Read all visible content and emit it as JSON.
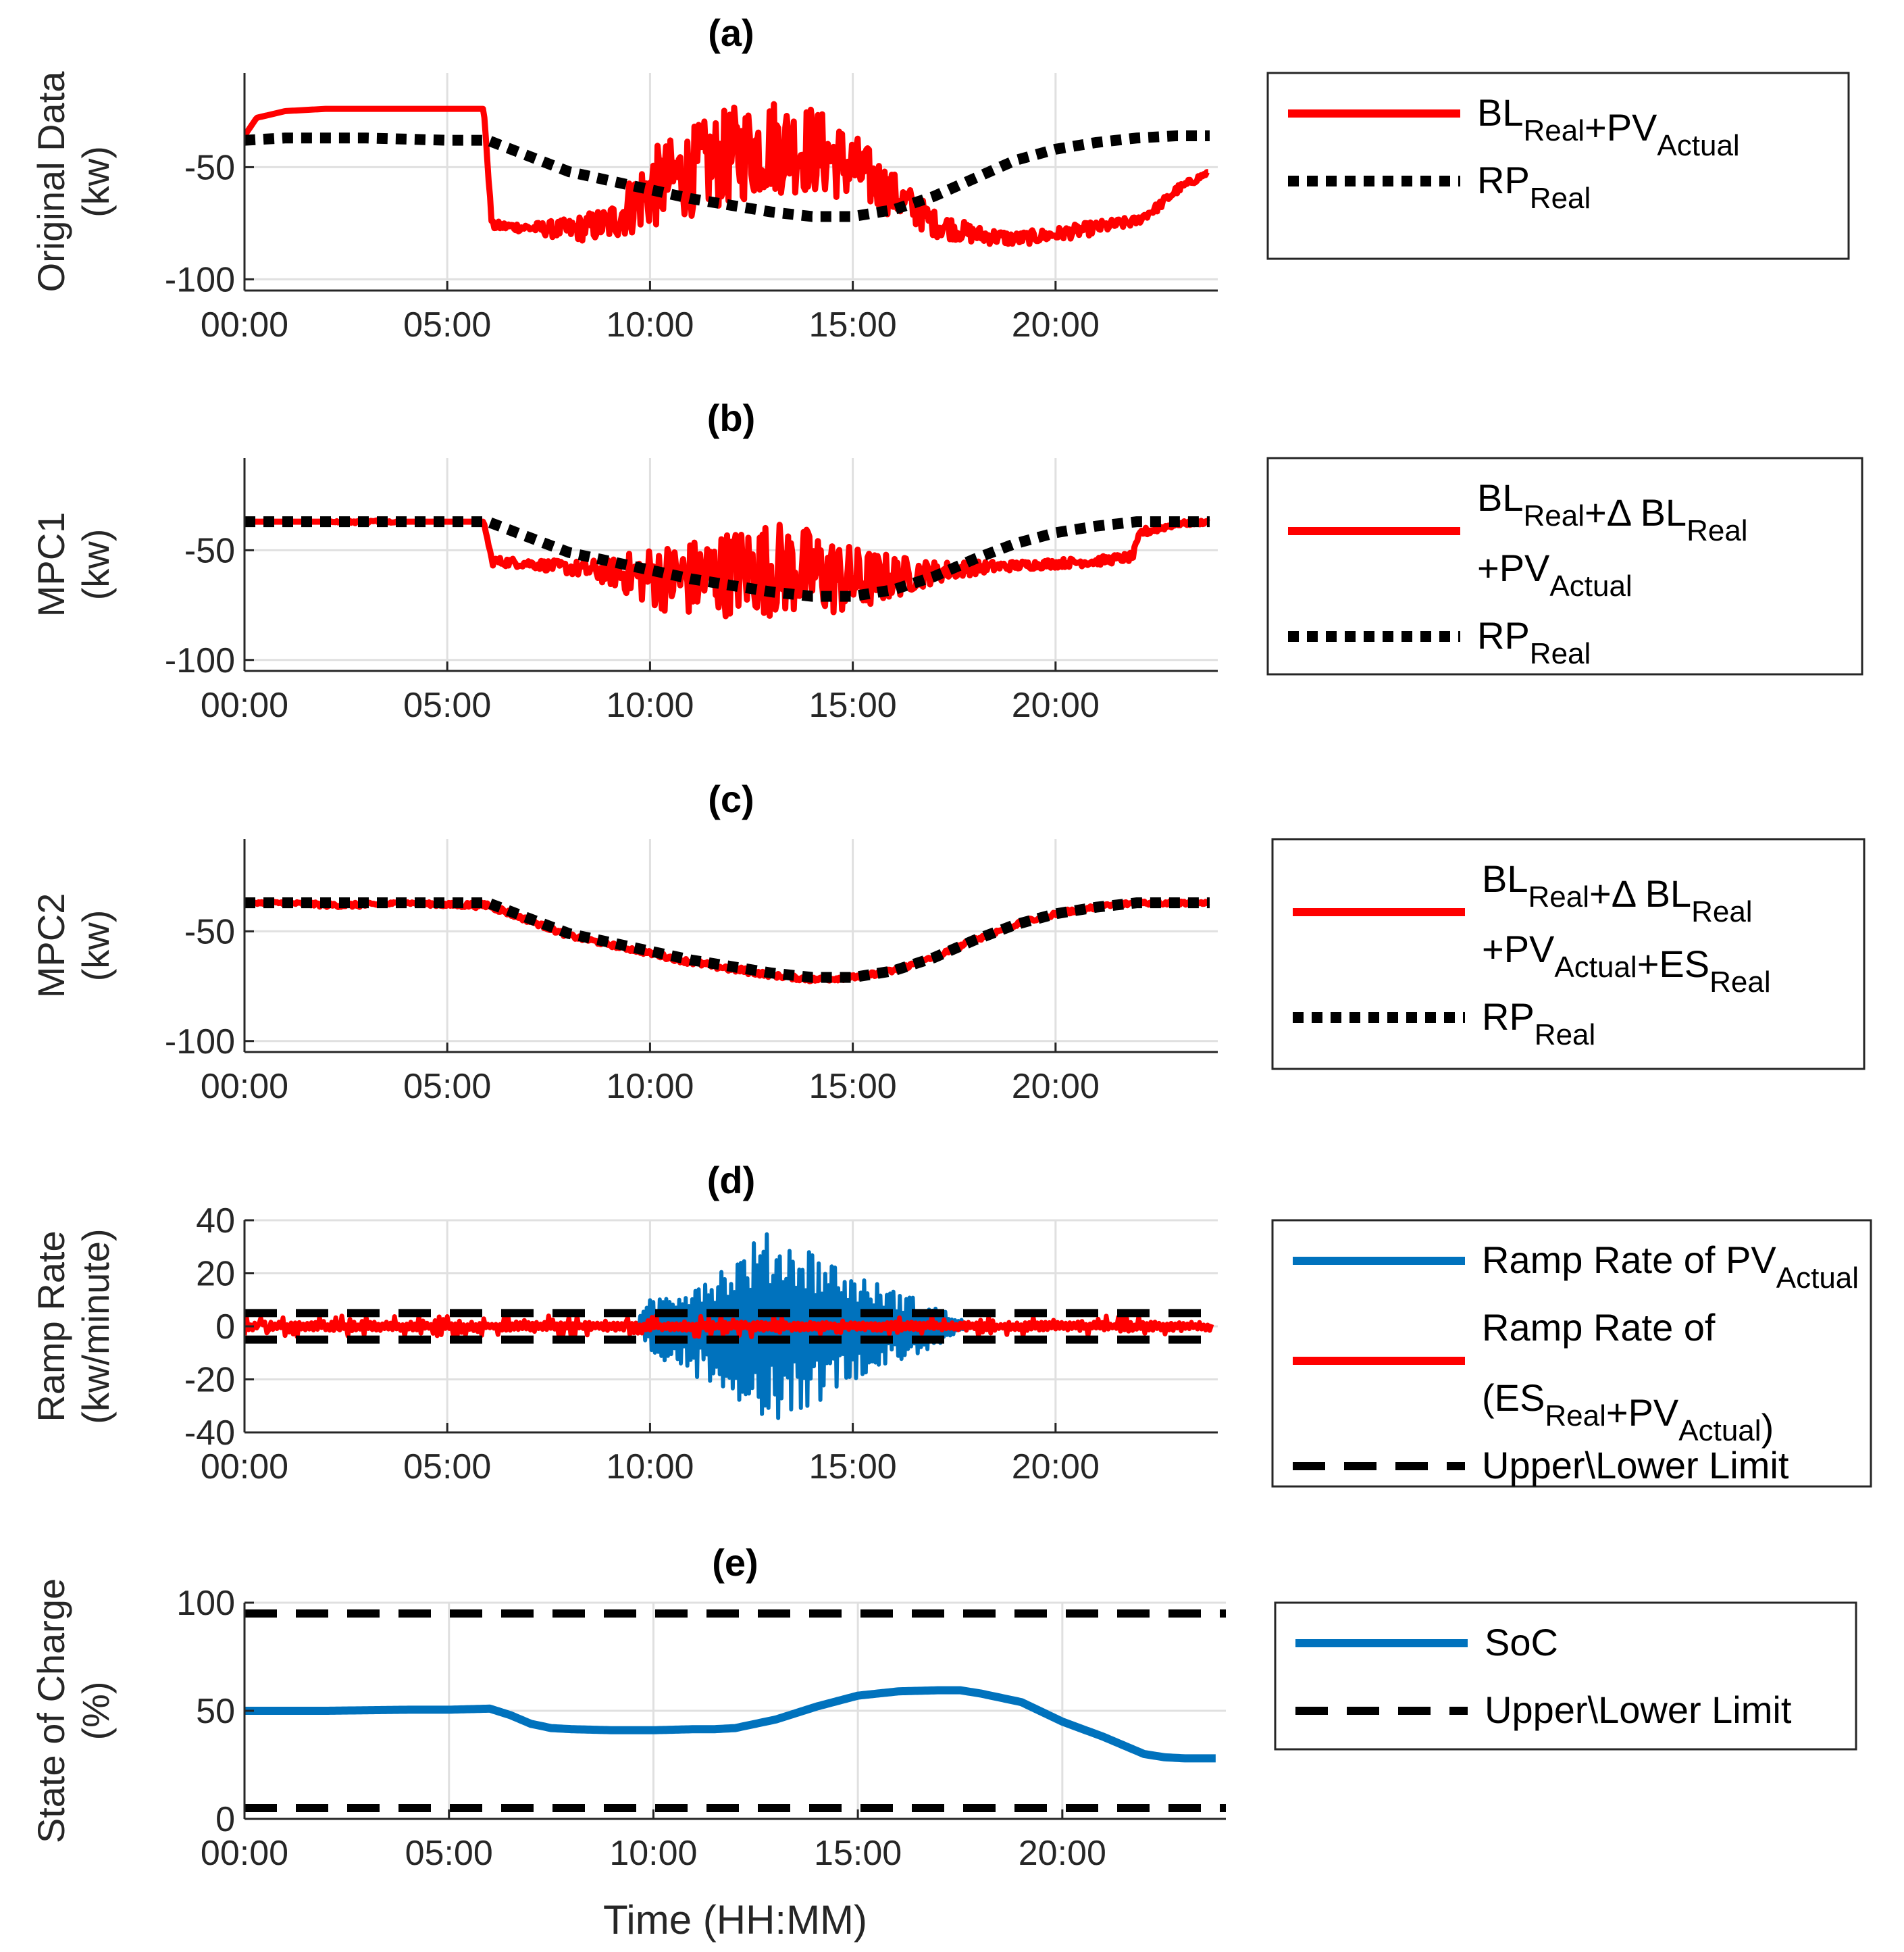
{
  "chart_data": [
    {
      "type": "line",
      "panel_label": "(a)",
      "ylabel_lines": [
        "Original Data",
        "(kw)"
      ],
      "xlabel": "",
      "x_ticks": [
        "00:00",
        "05:00",
        "10:00",
        "15:00",
        "20:00"
      ],
      "y_ticks": [
        "-50",
        "-100"
      ],
      "x_unit": "hours",
      "xlim": [
        0,
        24
      ],
      "ylim": [
        -105,
        -8
      ],
      "grid": true,
      "legend_position": "right",
      "series": [
        {
          "name": "BL_Real+PV_Actual",
          "color": "#ff0000",
          "style": "solid",
          "noisy": true,
          "x": [
            0,
            0.3,
            1,
            2,
            3,
            4,
            5,
            5.9,
            6.1,
            7,
            8,
            9,
            10,
            11,
            12,
            13,
            14,
            15,
            16,
            17,
            18,
            19,
            20,
            21,
            22,
            22.5,
            23,
            23.8
          ],
          "y": [
            -36,
            -28,
            -25,
            -24,
            -24,
            -24,
            -24,
            -24,
            -76,
            -77,
            -78,
            -75,
            -60,
            -52,
            -45,
            -40,
            -42,
            -50,
            -62,
            -75,
            -80,
            -82,
            -80,
            -77,
            -74,
            -68,
            -60,
            -52
          ],
          "noise": [
            0,
            0,
            0,
            0,
            0,
            0,
            0,
            0,
            2,
            2,
            5,
            8,
            18,
            20,
            22,
            22,
            20,
            16,
            10,
            6,
            4,
            3,
            3,
            3,
            2,
            2,
            2,
            1
          ]
        },
        {
          "name": "RP_Real",
          "color": "#000000",
          "style": "dotted",
          "x": [
            0,
            1,
            3,
            5,
            6,
            7,
            8,
            9,
            10,
            11,
            12,
            13,
            14,
            15,
            16,
            17,
            18,
            19,
            20,
            21,
            22,
            23,
            23.8
          ],
          "y": [
            -38,
            -37,
            -37,
            -38,
            -38,
            -45,
            -52,
            -56,
            -60,
            -64,
            -67,
            -70,
            -72,
            -72,
            -69,
            -63,
            -55,
            -47,
            -42,
            -39,
            -37,
            -36,
            -36
          ]
        }
      ]
    },
    {
      "type": "line",
      "panel_label": "(b)",
      "ylabel_lines": [
        "MPC1",
        "(kw)"
      ],
      "xlabel": "",
      "x_ticks": [
        "00:00",
        "05:00",
        "10:00",
        "15:00",
        "20:00"
      ],
      "y_ticks": [
        "-50",
        "-100"
      ],
      "x_unit": "hours",
      "xlim": [
        0,
        24
      ],
      "ylim": [
        -105,
        -8
      ],
      "grid": true,
      "legend_position": "right",
      "series": [
        {
          "name": "BL_Real+Δ BL_Real+PV_Actual",
          "color": "#ff0000",
          "style": "solid",
          "noisy": true,
          "x": [
            0,
            1,
            2,
            3,
            4,
            5,
            5.9,
            6.1,
            7,
            8,
            9,
            10,
            11,
            12,
            13,
            14,
            15,
            16,
            17,
            18,
            19,
            20,
            21,
            21.9,
            22.1,
            23,
            23.8
          ],
          "y": [
            -37,
            -37,
            -37,
            -37,
            -37,
            -37,
            -37,
            -55,
            -56,
            -58,
            -60,
            -62,
            -63,
            -60,
            -58,
            -60,
            -64,
            -62,
            -60,
            -58,
            -57,
            -56,
            -55,
            -53,
            -42,
            -38,
            -37
          ],
          "noise": [
            0,
            0,
            0,
            1,
            0,
            0,
            0,
            2,
            2,
            3,
            6,
            14,
            18,
            20,
            22,
            20,
            16,
            10,
            5,
            3,
            2,
            2,
            2,
            2,
            2,
            1,
            1
          ]
        },
        {
          "name": "RP_Real",
          "color": "#000000",
          "style": "dotted",
          "x": [
            0,
            1,
            3,
            5,
            6,
            7,
            8,
            9,
            10,
            11,
            12,
            13,
            14,
            15,
            16,
            17,
            18,
            19,
            20,
            21,
            22,
            23,
            23.8
          ],
          "y": [
            -37,
            -37,
            -37,
            -37,
            -37,
            -44,
            -51,
            -55,
            -59,
            -63,
            -66,
            -69,
            -71,
            -71,
            -68,
            -62,
            -54,
            -47,
            -42,
            -39,
            -37,
            -37,
            -37
          ]
        }
      ]
    },
    {
      "type": "line",
      "panel_label": "(c)",
      "ylabel_lines": [
        "MPC2",
        "(kw)"
      ],
      "xlabel": "",
      "x_ticks": [
        "00:00",
        "05:00",
        "10:00",
        "15:00",
        "20:00"
      ],
      "y_ticks": [
        "-50",
        "-100"
      ],
      "x_unit": "hours",
      "xlim": [
        0,
        24
      ],
      "ylim": [
        -105,
        -8
      ],
      "grid": true,
      "legend_position": "right",
      "series": [
        {
          "name": "BL_Real+Δ BL_Real+PV_Actual+ES_Real",
          "color": "#ff0000",
          "style": "solid",
          "noisy": true,
          "x": [
            0,
            1,
            2,
            3,
            4,
            5,
            6,
            7,
            8,
            9,
            10,
            11,
            12,
            13,
            14,
            15,
            16,
            17,
            18,
            19,
            20,
            21,
            22,
            23,
            23.8
          ],
          "y": [
            -37,
            -37,
            -38,
            -38,
            -37,
            -38,
            -38,
            -45,
            -52,
            -56,
            -60,
            -64,
            -67,
            -70,
            -72,
            -71,
            -68,
            -62,
            -54,
            -47,
            -42,
            -39,
            -37,
            -37,
            -37
          ],
          "noise": [
            0.5,
            0.5,
            1,
            1,
            0.5,
            1,
            1.5,
            1,
            1,
            1,
            1,
            1.2,
            1.5,
            1,
            1,
            1,
            1,
            1,
            1,
            1,
            1,
            1,
            1,
            1,
            0.5
          ]
        },
        {
          "name": "RP_Real",
          "color": "#000000",
          "style": "dotted",
          "x": [
            0,
            1,
            3,
            5,
            6,
            7,
            8,
            9,
            10,
            11,
            12,
            13,
            14,
            15,
            16,
            17,
            18,
            19,
            20,
            21,
            22,
            23,
            23.8
          ],
          "y": [
            -37,
            -37,
            -37,
            -37,
            -37,
            -44,
            -51,
            -55,
            -59,
            -63,
            -66,
            -69,
            -71,
            -71,
            -68,
            -62,
            -54,
            -47,
            -42,
            -39,
            -37,
            -37,
            -37
          ]
        }
      ]
    },
    {
      "type": "line",
      "panel_label": "(d)",
      "ylabel_lines": [
        "Ramp Rate",
        "(kw/minute)"
      ],
      "xlabel": "",
      "x_ticks": [
        "00:00",
        "05:00",
        "10:00",
        "15:00",
        "20:00"
      ],
      "y_ticks": [
        "40",
        "20",
        "0",
        "-20",
        "-40"
      ],
      "x_unit": "hours",
      "xlim": [
        0,
        24
      ],
      "ylim": [
        -40,
        40
      ],
      "grid": true,
      "legend_position": "right",
      "series": [
        {
          "name": "Ramp Rate of PV_Actual",
          "color": "#0072bd",
          "style": "solid",
          "envelope_x": [
            9.6,
            10,
            11,
            12,
            12.5,
            13,
            13.5,
            14,
            15,
            16,
            17,
            18
          ],
          "envelope_amp": [
            0,
            10,
            18,
            25,
            32,
            36,
            33,
            30,
            20,
            14,
            8,
            0
          ]
        },
        {
          "name": "Ramp Rate of (ES_Real+PV_Actual)",
          "color": "#ff0000",
          "style": "solid",
          "amplitude": 4
        },
        {
          "name": "Upper\\Lower Limit",
          "color": "#000000",
          "style": "dashed",
          "values": [
            5,
            -5
          ]
        }
      ]
    },
    {
      "type": "line",
      "panel_label": "(e)",
      "ylabel_lines": [
        "State of Charge",
        "(%)"
      ],
      "xlabel": "Time (HH:MM)",
      "x_ticks": [
        "00:00",
        "05:00",
        "10:00",
        "15:00",
        "20:00"
      ],
      "y_ticks": [
        "100",
        "50",
        "0"
      ],
      "x_unit": "hours",
      "xlim": [
        0,
        24
      ],
      "ylim": [
        0,
        100
      ],
      "grid": true,
      "legend_position": "right",
      "series": [
        {
          "name": "SoC",
          "color": "#0072bd",
          "style": "solid",
          "x": [
            0,
            2,
            4,
            5,
            6,
            6.5,
            7,
            7.5,
            8,
            9,
            10,
            11,
            11.5,
            12,
            13,
            14,
            15,
            16,
            17,
            17.5,
            18,
            19,
            20,
            21,
            22,
            22.5,
            23,
            23.8
          ],
          "y": [
            50,
            50,
            50.5,
            50.5,
            51,
            48,
            44,
            42,
            41.5,
            41,
            41,
            41.5,
            41.5,
            42,
            46,
            52,
            57,
            59,
            59.5,
            59.5,
            58,
            54,
            45,
            38,
            30,
            28.5,
            28,
            28
          ]
        },
        {
          "name": "Upper\\Lower Limit",
          "color": "#000000",
          "style": "dashed",
          "values": [
            95,
            5
          ]
        }
      ]
    }
  ],
  "legends": [
    {
      "entries": [
        {
          "style": "red-solid",
          "parts": [
            [
              "BL",
              ""
            ],
            [
              "Real",
              "sub"
            ],
            [
              "+PV",
              ""
            ],
            [
              "Actual",
              "sub"
            ]
          ],
          "line2": null
        },
        {
          "style": "black-dotted",
          "parts": [
            [
              "RP",
              ""
            ],
            [
              "Real",
              "sub"
            ]
          ],
          "line2": null
        }
      ]
    },
    {
      "entries": [
        {
          "style": "red-solid",
          "parts": [
            [
              "BL",
              ""
            ],
            [
              "Real",
              "sub"
            ],
            [
              "+Δ BL",
              ""
            ],
            [
              "Real",
              "sub"
            ]
          ],
          "line2": [
            [
              "+PV",
              ""
            ],
            [
              "Actual",
              "sub"
            ]
          ]
        },
        {
          "style": "black-dotted",
          "parts": [
            [
              "RP",
              ""
            ],
            [
              "Real",
              "sub"
            ]
          ],
          "line2": null
        }
      ]
    },
    {
      "entries": [
        {
          "style": "red-solid",
          "parts": [
            [
              "BL",
              ""
            ],
            [
              "Real",
              "sub"
            ],
            [
              "+Δ BL",
              ""
            ],
            [
              "Real",
              "sub"
            ]
          ],
          "line2": [
            [
              "+PV",
              ""
            ],
            [
              "Actual",
              "sub"
            ],
            [
              "+ES",
              ""
            ],
            [
              "Real",
              "sub"
            ]
          ]
        },
        {
          "style": "black-dotted",
          "parts": [
            [
              "RP",
              ""
            ],
            [
              "Real",
              "sub"
            ]
          ],
          "line2": null
        }
      ]
    },
    {
      "entries": [
        {
          "style": "blue-solid",
          "parts": [
            [
              "Ramp Rate of PV",
              ""
            ],
            [
              "Actual",
              "sub"
            ]
          ],
          "line2": null
        },
        {
          "style": "red-solid",
          "parts": [
            [
              "Ramp Rate of",
              ""
            ]
          ],
          "line2": [
            [
              "(ES",
              ""
            ],
            [
              "Real",
              "sub"
            ],
            [
              "+PV",
              ""
            ],
            [
              "Actual",
              "sub"
            ],
            [
              ")",
              ""
            ]
          ]
        },
        {
          "style": "black-dashed",
          "parts": [
            [
              "Upper\\Lower Limit",
              ""
            ]
          ],
          "line2": null
        }
      ]
    },
    {
      "entries": [
        {
          "style": "blue-solid",
          "parts": [
            [
              "SoC",
              ""
            ]
          ],
          "line2": null
        },
        {
          "style": "black-dashed",
          "parts": [
            [
              "Upper\\Lower Limit",
              ""
            ]
          ],
          "line2": null
        }
      ]
    }
  ],
  "colors": {
    "red": "#ff0000",
    "blue": "#0072bd",
    "black": "#000000",
    "grid": "#e0e0e0"
  }
}
